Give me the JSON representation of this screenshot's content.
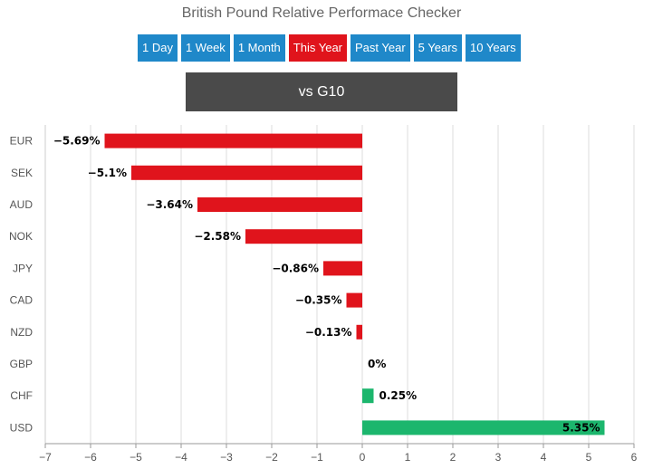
{
  "header": {
    "title": "British Pound Relative Performace Checker"
  },
  "periods": [
    {
      "label": "1 Day",
      "active": false
    },
    {
      "label": "1 Week",
      "active": false
    },
    {
      "label": "1 Month",
      "active": false
    },
    {
      "label": "This Year",
      "active": true
    },
    {
      "label": "Past Year",
      "active": false
    },
    {
      "label": "5 Years",
      "active": false
    },
    {
      "label": "10 Years",
      "active": false
    }
  ],
  "group": {
    "label": "vs G10"
  },
  "colors": {
    "negative": "#e0141c",
    "positive": "#1cb66d",
    "button": "#1f88c9",
    "button_active": "#e0141c",
    "group_bar": "#4a4a4a"
  },
  "chart_data": {
    "type": "bar",
    "orientation": "horizontal",
    "categories": [
      "EUR",
      "SEK",
      "AUD",
      "NOK",
      "JPY",
      "CAD",
      "NZD",
      "GBP",
      "CHF",
      "USD"
    ],
    "values": [
      -5.69,
      -5.1,
      -3.64,
      -2.58,
      -0.86,
      -0.35,
      -0.13,
      0,
      0.25,
      5.35
    ],
    "data_labels": [
      "−5.69%",
      "−5.1%",
      "−3.64%",
      "−2.58%",
      "−0.86%",
      "−0.35%",
      "−0.13%",
      "0%",
      "0.25%",
      "5.35%"
    ],
    "xlim": [
      -7,
      6
    ],
    "xticks": [
      -7,
      -6,
      -5,
      -4,
      -3,
      -2,
      -1,
      0,
      1,
      2,
      3,
      4,
      5,
      6
    ],
    "xtick_labels": [
      "−7",
      "−6",
      "−5",
      "−4",
      "−3",
      "−2",
      "−1",
      "0",
      "1",
      "2",
      "3",
      "4",
      "5",
      "6"
    ],
    "grid": true
  }
}
